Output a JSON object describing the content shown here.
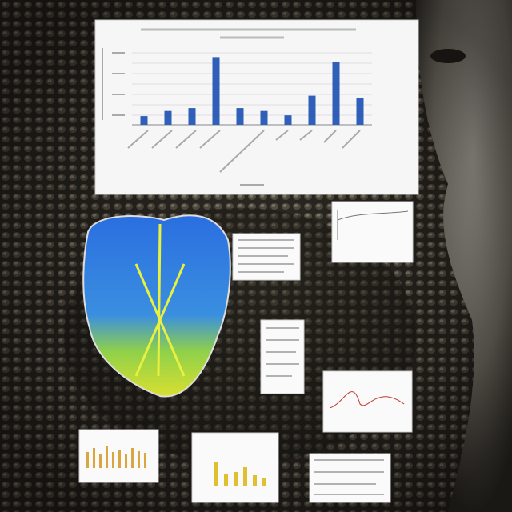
{
  "chart_data": {
    "type": "bar",
    "categories": [
      null,
      null,
      null,
      null,
      null,
      null,
      null,
      null,
      null,
      null
    ],
    "values": [
      12,
      19,
      23,
      93,
      23,
      19,
      13,
      40,
      86,
      37
    ],
    "color": "#2f5fb8",
    "ylim": [
      0,
      100
    ]
  }
}
